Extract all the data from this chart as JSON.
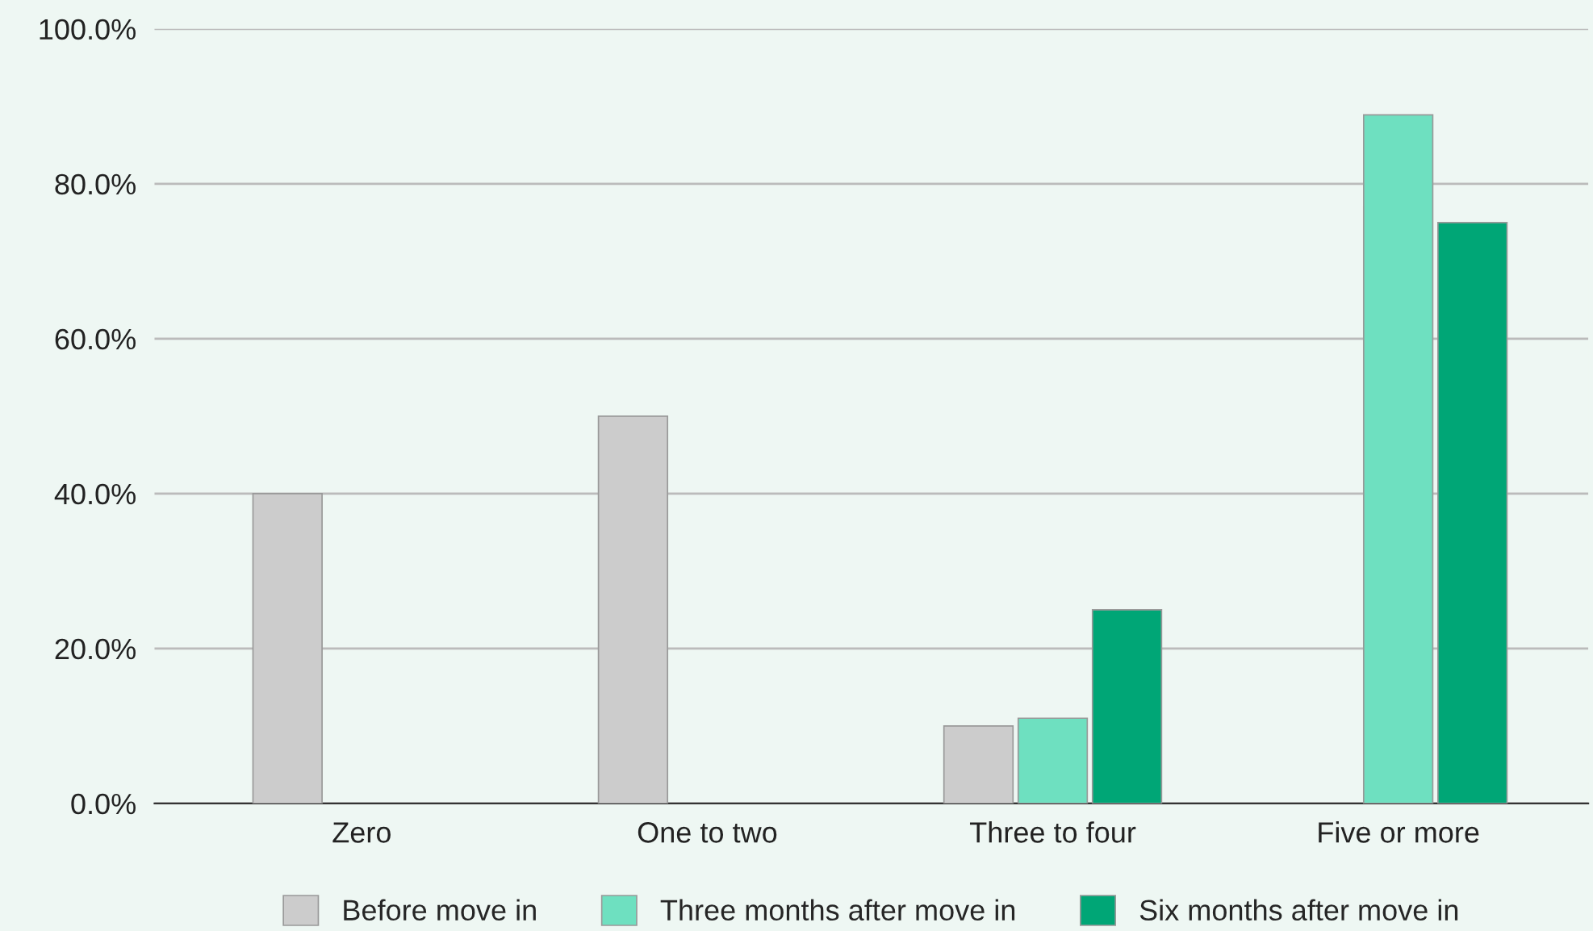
{
  "chart_data": {
    "type": "bar",
    "categories": [
      "Zero",
      "One to two",
      "Three to four",
      "Five or more"
    ],
    "series": [
      {
        "name": "Before move in",
        "color": "#cccccc",
        "values": [
          40,
          50,
          10,
          null
        ]
      },
      {
        "name": "Three months after move in",
        "color": "#6ee0c0",
        "values": [
          null,
          null,
          11,
          88.9
        ]
      },
      {
        "name": "Six months after move in",
        "color": "#00a676",
        "values": [
          null,
          null,
          25,
          75
        ]
      }
    ],
    "ylim": [
      0,
      100
    ],
    "yticks": [
      {
        "value": 0,
        "label": "0.0%"
      },
      {
        "value": 20,
        "label": "20.0%"
      },
      {
        "value": 40,
        "label": "40.0%"
      },
      {
        "value": 60,
        "label": "60.0%"
      },
      {
        "value": 80,
        "label": "80.0%"
      },
      {
        "value": 100,
        "label": "100.0%"
      }
    ],
    "grid": "y",
    "legend": "bottom"
  }
}
